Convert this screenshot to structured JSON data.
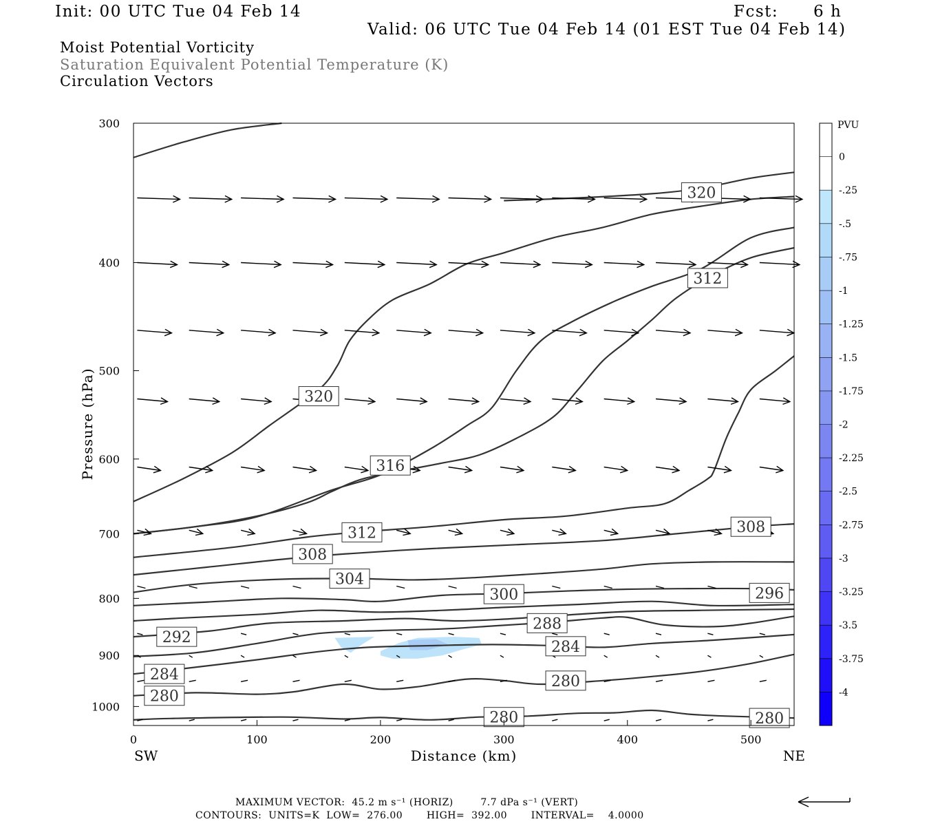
{
  "header": {
    "init": "Init: 00 UTC Tue 04 Feb 14",
    "fcst_label": "Fcst:",
    "fcst_value": "6 h",
    "valid": "Valid: 06 UTC Tue 04 Feb 14 (01 EST Tue 04 Feb 14)"
  },
  "titles": {
    "line1": "Moist Potential Vorticity",
    "line2": "Saturation Equivalent Potential Temperature (K)",
    "line3": "Circulation Vectors"
  },
  "footer": {
    "max_vector": "MAXIMUM VECTOR:  45.2 m s⁻¹ (HORIZ)        7.7 dPa s⁻¹ (VERT)",
    "contours": "CONTOURS:  UNITS=K  LOW=  276.00       HIGH=  392.00       INTERVAL=    4.0000"
  },
  "colors": {
    "contour": "#333333",
    "vector": "#000000",
    "mpv_light": "#bde3fb",
    "mpv_mid": "#a8ccf6"
  },
  "chart_data": {
    "type": "cross-section",
    "xlabel": "Distance (km)",
    "ylabel": "Pressure (hPa)",
    "xlim": [
      0,
      535
    ],
    "ylim": [
      1040,
      300
    ],
    "y_scale": "log-pressure",
    "x_ticks": [
      0,
      100,
      200,
      300,
      400,
      500
    ],
    "y_ticks": [
      300,
      400,
      500,
      600,
      700,
      800,
      900,
      1000
    ],
    "x_end_labels": {
      "left": "SW",
      "right": "NE"
    },
    "colorbar": {
      "units": "PVU",
      "levels": [
        "0",
        "-.25",
        "-.5",
        "-.75",
        "-1",
        "-1.25",
        "-1.5",
        "-1.75",
        "-2",
        "-2.25",
        "-2.5",
        "-2.75",
        "-3",
        "-3.25",
        "-3.5",
        "-3.75",
        "-4"
      ],
      "colors": [
        "#ffffff",
        "#ffffff",
        "#bfe6fb",
        "#b1d9f8",
        "#a8ccf6",
        "#9fc0f5",
        "#98b2f3",
        "#8fa3f2",
        "#8697f1",
        "#7c86f1",
        "#7378f3",
        "#6a6bf3",
        "#5f5cf4",
        "#4f46f4",
        "#3f34f5",
        "#2d22f7",
        "#1e0ff8",
        "#0f00fb"
      ]
    },
    "contours": [
      {
        "label": "280",
        "points": [
          [
            0,
            1028
          ],
          [
            30,
            1025
          ],
          [
            120,
            1022
          ],
          [
            170,
            1026
          ],
          [
            200,
            1023
          ],
          [
            240,
            1028
          ],
          [
            280,
            1022
          ],
          [
            320,
            1020
          ],
          [
            360,
            1014
          ],
          [
            390,
            1013
          ],
          [
            420,
            1008
          ],
          [
            450,
            1016
          ],
          [
            480,
            1020
          ],
          [
            535,
            1024
          ]
        ],
        "labels_at": [
          [
            300,
            1022
          ],
          [
            515,
            1024
          ]
        ]
      },
      {
        "label": "280",
        "points": [
          [
            0,
            978
          ],
          [
            50,
            972
          ],
          [
            100,
            975
          ],
          [
            130,
            970
          ],
          [
            170,
            955
          ],
          [
            200,
            965
          ],
          [
            230,
            960
          ],
          [
            270,
            945
          ],
          [
            300,
            948
          ],
          [
            330,
            955
          ],
          [
            380,
            948
          ],
          [
            420,
            940
          ],
          [
            460,
            930
          ],
          [
            500,
            915
          ],
          [
            535,
            898
          ]
        ],
        "labels_at": [
          [
            25,
            978
          ],
          [
            350,
            948
          ]
        ]
      },
      {
        "label": "284",
        "points": [
          [
            0,
            935
          ],
          [
            40,
            925
          ],
          [
            100,
            908
          ],
          [
            150,
            893
          ],
          [
            190,
            885
          ],
          [
            240,
            882
          ],
          [
            290,
            880
          ],
          [
            340,
            882
          ],
          [
            380,
            885
          ],
          [
            420,
            878
          ],
          [
            470,
            872
          ],
          [
            535,
            862
          ]
        ],
        "labels_at": [
          [
            25,
            935
          ],
          [
            350,
            883
          ]
        ]
      },
      {
        "label": "288",
        "points": [
          [
            0,
            902
          ],
          [
            50,
            895
          ],
          [
            100,
            878
          ],
          [
            150,
            860
          ],
          [
            200,
            855
          ],
          [
            250,
            852
          ],
          [
            290,
            847
          ],
          [
            340,
            840
          ],
          [
            380,
            833
          ],
          [
            400,
            832
          ],
          [
            430,
            845
          ],
          [
            470,
            848
          ],
          [
            500,
            842
          ],
          [
            535,
            830
          ]
        ],
        "labels_at": [
          [
            335,
            842
          ]
        ]
      },
      {
        "label": "292",
        "points": [
          [
            0,
            866
          ],
          [
            60,
            856
          ],
          [
            110,
            842
          ],
          [
            170,
            838
          ],
          [
            220,
            834
          ],
          [
            260,
            838
          ],
          [
            300,
            835
          ],
          [
            350,
            828
          ],
          [
            400,
            822
          ],
          [
            460,
            820
          ],
          [
            535,
            818
          ]
        ],
        "labels_at": [
          [
            35,
            866
          ]
        ]
      },
      {
        "label": "296",
        "points": [
          [
            0,
            838
          ],
          [
            40,
            833
          ],
          [
            100,
            827
          ],
          [
            150,
            820
          ],
          [
            200,
            823
          ],
          [
            250,
            820
          ],
          [
            300,
            815
          ],
          [
            360,
            810
          ],
          [
            420,
            805
          ],
          [
            470,
            812
          ],
          [
            535,
            810
          ]
        ],
        "labels_at": [
          [
            515,
            791
          ]
        ]
      },
      {
        "label": "300",
        "points": [
          [
            0,
            812
          ],
          [
            60,
            806
          ],
          [
            120,
            800
          ],
          [
            170,
            802
          ],
          [
            200,
            805
          ],
          [
            250,
            795
          ],
          [
            300,
            792
          ],
          [
            350,
            788
          ],
          [
            400,
            785
          ],
          [
            450,
            784
          ],
          [
            500,
            784
          ],
          [
            535,
            786
          ]
        ],
        "labels_at": [
          [
            300,
            793
          ]
        ]
      },
      {
        "label": "304",
        "points": [
          [
            0,
            790
          ],
          [
            50,
            777
          ],
          [
            120,
            769
          ],
          [
            180,
            768
          ],
          [
            230,
            770
          ],
          [
            280,
            766
          ],
          [
            330,
            760
          ],
          [
            380,
            753
          ],
          [
            420,
            745
          ],
          [
            470,
            742
          ],
          [
            535,
            742
          ]
        ],
        "labels_at": [
          [
            175,
            768
          ]
        ]
      },
      {
        "label": "308",
        "points": [
          [
            0,
            762
          ],
          [
            60,
            750
          ],
          [
            120,
            738
          ],
          [
            170,
            730
          ],
          [
            240,
            722
          ],
          [
            310,
            716
          ],
          [
            380,
            710
          ],
          [
            440,
            700
          ],
          [
            500,
            690
          ],
          [
            535,
            686
          ]
        ],
        "labels_at": [
          [
            145,
            730
          ],
          [
            500,
            690
          ]
        ]
      },
      {
        "label": "312",
        "points": [
          [
            0,
            735
          ],
          [
            80,
            720
          ],
          [
            140,
            705
          ],
          [
            180,
            698
          ],
          [
            240,
            690
          ],
          [
            300,
            680
          ],
          [
            350,
            675
          ],
          [
            400,
            664
          ],
          [
            430,
            658
          ],
          [
            450,
            640
          ],
          [
            465,
            625
          ],
          [
            470,
            615
          ],
          [
            480,
            575
          ],
          [
            490,
            545
          ],
          [
            500,
            520
          ],
          [
            520,
            500
          ],
          [
            535,
            485
          ]
        ],
        "labels_at": [
          [
            185,
            698
          ]
        ]
      },
      {
        "label": "312",
        "points": [
          [
            0,
            700
          ],
          [
            50,
            690
          ],
          [
            100,
            675
          ],
          [
            140,
            657
          ],
          [
            160,
            642
          ],
          [
            180,
            628
          ],
          [
            200,
            620
          ],
          [
            250,
            605
          ],
          [
            280,
            595
          ],
          [
            310,
            575
          ],
          [
            340,
            550
          ],
          [
            360,
            520
          ],
          [
            380,
            490
          ],
          [
            400,
            470
          ],
          [
            420,
            450
          ],
          [
            440,
            430
          ],
          [
            470,
            410
          ],
          [
            500,
            396
          ],
          [
            535,
            388
          ]
        ],
        "labels_at": [
          [
            465,
            413
          ]
        ]
      },
      {
        "label": "316",
        "points": [
          [
            0,
            700
          ],
          [
            50,
            690
          ],
          [
            100,
            676
          ],
          [
            160,
            640
          ],
          [
            200,
            620
          ],
          [
            240,
            588
          ],
          [
            270,
            560
          ],
          [
            290,
            540
          ],
          [
            310,
            500
          ],
          [
            330,
            470
          ],
          [
            355,
            452
          ],
          [
            390,
            433
          ],
          [
            420,
            420
          ],
          [
            460,
            405
          ],
          [
            500,
            380
          ],
          [
            535,
            372
          ]
        ],
        "labels_at": [
          [
            208,
            608
          ]
        ]
      },
      {
        "label": "320",
        "points": [
          [
            0,
            655
          ],
          [
            40,
            625
          ],
          [
            80,
            592
          ],
          [
            110,
            560
          ],
          [
            150,
            520
          ],
          [
            165,
            495
          ],
          [
            175,
            470
          ],
          [
            190,
            450
          ],
          [
            210,
            432
          ],
          [
            240,
            418
          ],
          [
            270,
            401
          ],
          [
            300,
            392
          ],
          [
            340,
            380
          ],
          [
            380,
            372
          ],
          [
            420,
            362
          ],
          [
            460,
            356
          ],
          [
            500,
            351
          ],
          [
            535,
            349
          ]
        ],
        "labels_at": [
          [
            150,
            527
          ]
        ]
      },
      {
        "label": "320",
        "points": [
          [
            0,
            322
          ],
          [
            40,
            312
          ],
          [
            80,
            304
          ],
          [
            120,
            300
          ]
        ],
        "labels_at": []
      },
      {
        "label": "320",
        "points": [
          [
            300,
            352
          ],
          [
            360,
            350
          ],
          [
            420,
            347
          ],
          [
            460,
            343
          ],
          [
            500,
            336
          ],
          [
            535,
            332
          ]
        ],
        "labels_at": [
          [
            460,
            346
          ]
        ]
      }
    ],
    "mpv_regions": [
      {
        "min_pvu": -0.75,
        "max_pvu": -0.25,
        "points": [
          [
            163,
            868
          ],
          [
            195,
            866
          ],
          [
            185,
            880
          ],
          [
            176,
            895
          ],
          [
            168,
            885
          ]
        ]
      },
      {
        "min_pvu": -0.75,
        "max_pvu": -0.25,
        "points": [
          [
            200,
            892
          ],
          [
            215,
            877
          ],
          [
            230,
            868
          ],
          [
            260,
            866
          ],
          [
            280,
            868
          ],
          [
            282,
            880
          ],
          [
            268,
            888
          ],
          [
            250,
            900
          ],
          [
            230,
            906
          ],
          [
            210,
            906
          ],
          [
            200,
            900
          ]
        ]
      },
      {
        "min_pvu": -1.0,
        "max_pvu": -0.75,
        "points": [
          [
            222,
            872
          ],
          [
            245,
            870
          ],
          [
            255,
            880
          ],
          [
            238,
            890
          ],
          [
            224,
            890
          ]
        ]
      }
    ],
    "vector_rows_hpa": [
      350,
      400,
      460,
      530,
      610,
      695,
      780,
      860,
      900,
      950,
      1030
    ]
  }
}
